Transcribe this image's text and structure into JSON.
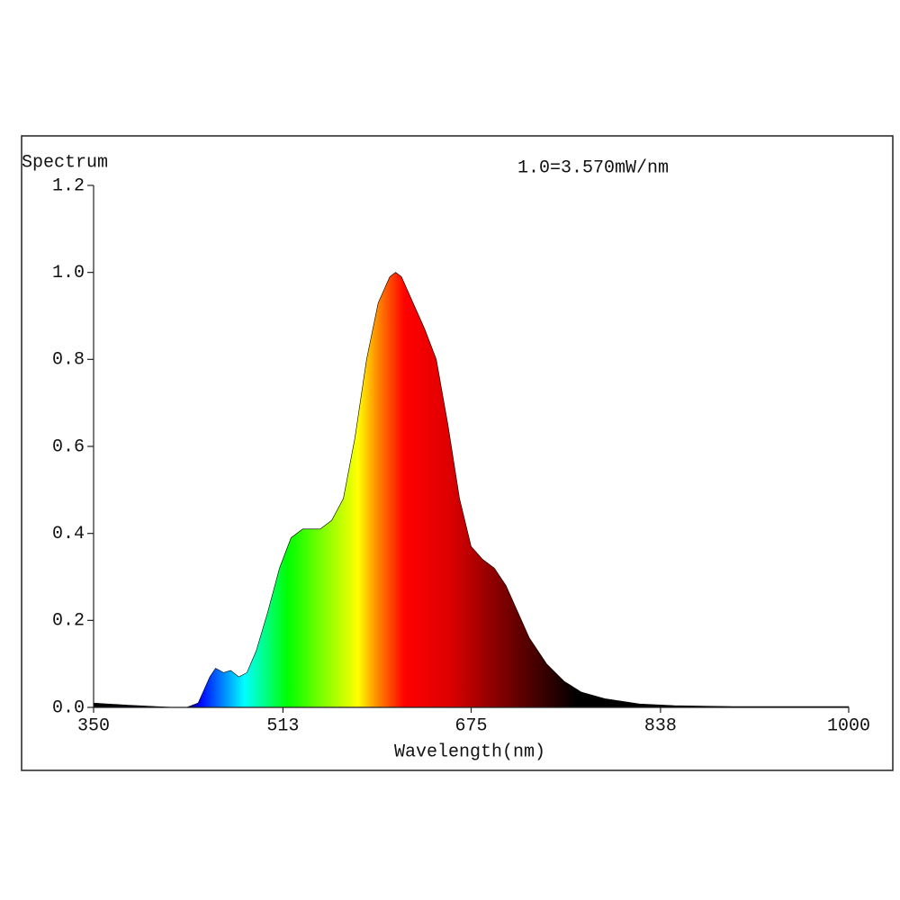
{
  "chart_data": {
    "type": "area",
    "ylabel": "Spectrum",
    "xlabel": "Wavelength(nm)",
    "annotation": "1.0=3.570mW/nm",
    "x": [
      350,
      380,
      420,
      430,
      440,
      450,
      455,
      462,
      468,
      475,
      482,
      490,
      500,
      510,
      520,
      530,
      545,
      555,
      565,
      575,
      585,
      595,
      605,
      610,
      615,
      625,
      635,
      645,
      655,
      665,
      675,
      685,
      695,
      705,
      715,
      725,
      740,
      755,
      770,
      790,
      820,
      850,
      900,
      950,
      1000
    ],
    "values": [
      0.01,
      0.005,
      0.0,
      0.0,
      0.01,
      0.07,
      0.09,
      0.08,
      0.085,
      0.07,
      0.08,
      0.13,
      0.22,
      0.32,
      0.39,
      0.41,
      0.41,
      0.43,
      0.48,
      0.62,
      0.8,
      0.93,
      0.99,
      1.0,
      0.99,
      0.93,
      0.87,
      0.8,
      0.65,
      0.48,
      0.37,
      0.34,
      0.32,
      0.28,
      0.22,
      0.16,
      0.1,
      0.06,
      0.035,
      0.02,
      0.008,
      0.004,
      0.002,
      0.002,
      0.002
    ],
    "xlim": [
      350,
      1000
    ],
    "ylim": [
      0,
      1.2
    ],
    "xticks": [
      350,
      513,
      675,
      838,
      1000
    ],
    "yticks": [
      {
        "value": 0,
        "label": "0.0"
      },
      0.2,
      0.4,
      0.6,
      0.8,
      {
        "value": 1,
        "label": "1.0"
      },
      {
        "value": 1.2,
        "label": "1.2"
      }
    ]
  }
}
